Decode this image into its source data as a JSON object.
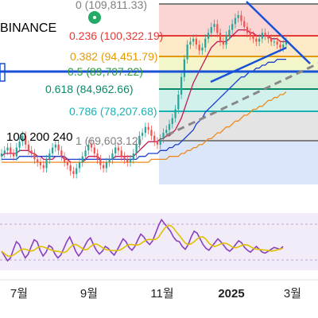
{
  "chart_data": {
    "type": "candlestick",
    "exchange": "BINANCE",
    "fib_levels": [
      {
        "ratio": "0",
        "price": "(109,811.33)",
        "color": "#7f7f7f",
        "band": "#fbd4d4"
      },
      {
        "ratio": "0.236",
        "price": "(100,322.19)",
        "color": "#e53935",
        "band": "#fde8c8"
      },
      {
        "ratio": "0.382",
        "price": "(94,451.79)",
        "color": "#e69a00",
        "band": "#f3f6c8"
      },
      {
        "ratio": "0.5",
        "price": "(89,707.22)",
        "color": "#2e9c3c",
        "band": "#d6f0da"
      },
      {
        "ratio": "0.618",
        "price": "(84,962.66)",
        "color": "#0a8a6a",
        "band": "#d2f1ec"
      },
      {
        "ratio": "0.786",
        "price": "(78,207.68)",
        "color": "#17b3b3",
        "band": "#e4e4e4"
      },
      {
        "ratio": "1",
        "price": "(69,603.12)",
        "color": "#7f7f7f",
        "band": "#dbe6fb"
      }
    ],
    "ma_legend": "100 200 240",
    "x_ticks": [
      "7월",
      "9월",
      "11월",
      "2025",
      "3월"
    ],
    "price_series": [
      60,
      61,
      62,
      60,
      59,
      62,
      64,
      66,
      63,
      61,
      60,
      58,
      57,
      56,
      55,
      58,
      60,
      62,
      63,
      61,
      59,
      57,
      56,
      54,
      53,
      55,
      57,
      59,
      61,
      63,
      62,
      60,
      58,
      56,
      55,
      57,
      58,
      60,
      62,
      61,
      59,
      58,
      57,
      58,
      60,
      63,
      66,
      67,
      69,
      68,
      66,
      64,
      63,
      65,
      67,
      68,
      70,
      72,
      75,
      80,
      86,
      92,
      97,
      98,
      99,
      97,
      95,
      96,
      99,
      101,
      103,
      104,
      101,
      98,
      97,
      100,
      102,
      104,
      106,
      107,
      105,
      103,
      101,
      100,
      99,
      98,
      99,
      101,
      100,
      99,
      98,
      98,
      97,
      96,
      97,
      98
    ],
    "rsi_series": [
      45,
      40,
      35,
      38,
      47,
      55,
      52,
      44,
      38,
      42,
      50,
      57,
      55,
      46,
      40,
      44,
      51,
      49,
      42,
      38,
      41,
      48,
      55,
      60,
      53,
      45,
      40,
      44,
      50,
      56,
      59,
      52,
      46,
      42,
      45,
      50,
      48,
      44,
      41,
      46,
      52,
      58,
      55,
      49,
      46,
      50,
      57,
      63,
      60,
      55,
      52,
      56,
      64,
      72,
      78,
      74,
      70,
      66,
      60,
      56,
      55,
      50,
      47,
      52,
      60,
      66,
      64,
      58,
      52,
      48,
      46,
      50,
      54,
      58,
      55,
      51,
      47,
      45,
      48,
      52,
      56,
      54,
      49,
      46,
      44,
      47,
      50,
      47,
      44,
      43,
      45,
      47,
      49,
      48,
      47,
      50
    ],
    "ma_fast": [
      59,
      60,
      60,
      60,
      60,
      60,
      61,
      61,
      61,
      61,
      60,
      60,
      59,
      59,
      58,
      58,
      58,
      58,
      59,
      59,
      59,
      58,
      58,
      57,
      57,
      57,
      57,
      57,
      58,
      59,
      59,
      59,
      59,
      58,
      58,
      58,
      58,
      58,
      59,
      59,
      59,
      59,
      59,
      59,
      59,
      60,
      61,
      62,
      63,
      64,
      64,
      64,
      64,
      65,
      65,
      66,
      66,
      67,
      68,
      70,
      72,
      75,
      78,
      81,
      84,
      86,
      88,
      90,
      92,
      94,
      96,
      97,
      98,
      98,
      98,
      98,
      99,
      100,
      101,
      102,
      102,
      102,
      102,
      101,
      101,
      100,
      100,
      100,
      100,
      100,
      99,
      99,
      99,
      98,
      98,
      98
    ],
    "ma_mid": [
      58,
      58,
      58,
      58,
      58,
      58,
      59,
      59,
      59,
      59,
      59,
      59,
      59,
      59,
      59,
      59,
      59,
      59,
      59,
      59,
      59,
      59,
      58,
      58,
      58,
      58,
      58,
      58,
      58,
      58,
      58,
      58,
      58,
      58,
      58,
      58,
      58,
      58,
      58,
      58,
      58,
      58,
      58,
      58,
      58,
      58,
      59,
      59,
      59,
      60,
      60,
      60,
      60,
      61,
      61,
      61,
      62,
      62,
      63,
      63,
      64,
      65,
      66,
      67,
      68,
      70,
      71,
      72,
      74,
      75,
      76,
      77,
      78,
      79,
      80,
      81,
      82,
      83,
      84,
      85,
      86,
      86,
      87,
      88,
      88,
      89,
      89,
      90,
      90,
      91,
      91,
      91,
      92,
      92,
      92,
      92
    ],
    "ma_slow": [
      57,
      57,
      57,
      57,
      57,
      57,
      57,
      57,
      57,
      57,
      57,
      57,
      57,
      57,
      57,
      57,
      57,
      57,
      57,
      57,
      57,
      57,
      57,
      57,
      57,
      57,
      57,
      57,
      57,
      57,
      57,
      57,
      57,
      57,
      57,
      57,
      57,
      57,
      57,
      57,
      57,
      57,
      57,
      57,
      57,
      57,
      57,
      57,
      57,
      57,
      58,
      58,
      58,
      58,
      58,
      58,
      59,
      59,
      59,
      59,
      60,
      60,
      61,
      61,
      62,
      62,
      63,
      63,
      64,
      65,
      65,
      66,
      67,
      67,
      68,
      69,
      69,
      70,
      71,
      71,
      72,
      73,
      73,
      74,
      75,
      75,
      76,
      76,
      77,
      78,
      78,
      79,
      79,
      80,
      80,
      81
    ]
  },
  "colors": {
    "up": "#26a69a",
    "down": "#ef5350",
    "rsi_line": "#8a3fbf",
    "rsi_ma": "#e0c000"
  }
}
